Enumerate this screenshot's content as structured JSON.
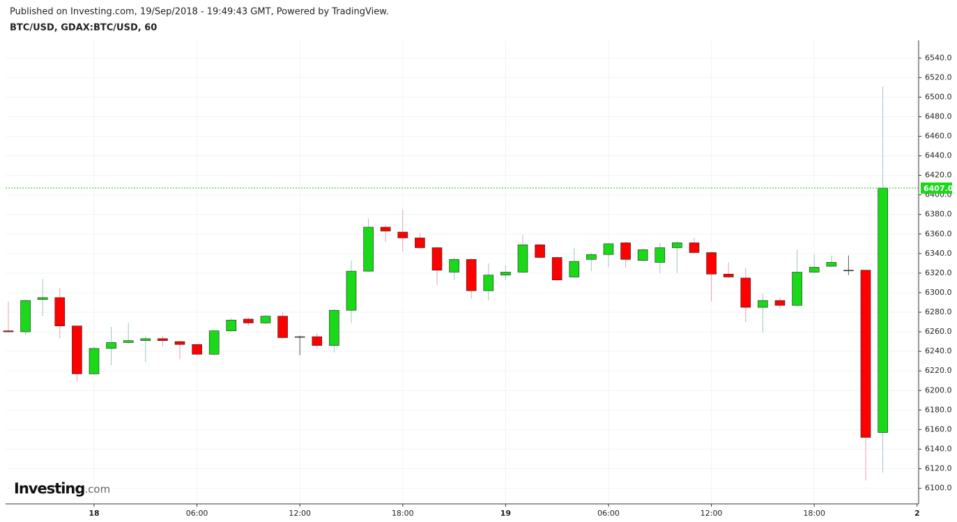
{
  "header": {
    "published": "Published on Investing.com, 19/Sep/2018 - 19:49:43 GMT, Powered by TradingView.",
    "symbol": "BTC/USD, GDAX:BTC/USD, 60"
  },
  "logo": {
    "name": "Investing",
    "suffix": ".com"
  },
  "chart_data": {
    "type": "candlestick",
    "categories": [
      null,
      null,
      null,
      null,
      null,
      "18",
      null,
      null,
      null,
      null,
      null,
      "06:00",
      null,
      null,
      null,
      null,
      null,
      "12:00",
      null,
      null,
      null,
      null,
      null,
      "18:00",
      null,
      null,
      null,
      null,
      null,
      "19",
      null,
      null,
      null,
      null,
      null,
      "06:00",
      null,
      null,
      null,
      null,
      null,
      "12:00",
      null,
      null,
      null,
      null,
      null,
      "18:00",
      null,
      null,
      null,
      null,
      null,
      "2"
    ],
    "open": [
      6261,
      6260,
      6293,
      6295,
      6266,
      6217,
      6243,
      6249,
      6251,
      6253,
      6250,
      6247,
      6237,
      6261,
      6273,
      6269,
      6276,
      6255,
      6255,
      6246,
      6282,
      6322,
      6367,
      6362,
      6356,
      6346,
      6321,
      6334,
      6302,
      6318,
      6321,
      6349,
      6336,
      6316,
      6334,
      6339,
      6351,
      6333,
      6331,
      6346,
      6351,
      6341,
      6319,
      6315,
      6285,
      6292,
      6287,
      6321,
      6327,
      6323,
      6323,
      6157,
      null,
      null
    ],
    "high": [
      6291,
      6293,
      6314,
      6305,
      6266,
      6245,
      6265,
      6269,
      6256,
      6256,
      6251,
      6248,
      6262,
      6274,
      6274,
      6277,
      6280,
      6256,
      6259,
      6283,
      6333,
      6376,
      6369,
      6385,
      6361,
      6347,
      6336,
      6335,
      6330,
      6328,
      6359,
      6350,
      6337,
      6346,
      6341,
      6351,
      6352,
      6345,
      6351,
      6353,
      6356,
      6342,
      6331,
      6325,
      6299,
      6295,
      6344,
      6339,
      6338,
      6338,
      6323,
      6511,
      null,
      null
    ],
    "low": [
      6259,
      6257,
      6276,
      6253,
      6209,
      6216,
      6226,
      6248,
      6229,
      6245,
      6232,
      6236,
      6236,
      6260,
      6266,
      6268,
      6253,
      6236,
      6243,
      6239,
      6269,
      6321,
      6352,
      6342,
      6345,
      6308,
      6313,
      6294,
      6292,
      6313,
      6320,
      6335,
      6312,
      6315,
      6322,
      6326,
      6326,
      6332,
      6320,
      6320,
      6340,
      6291,
      6315,
      6270,
      6259,
      6284,
      6286,
      6320,
      6326,
      6318,
      6108,
      6116,
      null,
      null
    ],
    "close": [
      6260,
      6292,
      6295,
      6266,
      6217,
      6243,
      6249,
      6251,
      6253,
      6251,
      6247,
      6237,
      6261,
      6272,
      6269,
      6276,
      6254,
      6255,
      6246,
      6282,
      6322,
      6367,
      6363,
      6356,
      6346,
      6323,
      6334,
      6302,
      6318,
      6321,
      6349,
      6336,
      6313,
      6332,
      6339,
      6350,
      6334,
      6344,
      6346,
      6351,
      6341,
      6319,
      6316,
      6285,
      6292,
      6287,
      6321,
      6326,
      6331,
      6323,
      6152,
      6407,
      null,
      null
    ],
    "up_color": "#19d919",
    "down_color": "#ff0000",
    "up_wick_color": "#9fc3c8",
    "down_wick_color": "#e8a0a8",
    "last_price": {
      "value": 6407,
      "label": "6407.0"
    },
    "ylim": [
      6084,
      6558
    ],
    "yticks": [
      {
        "value": 6100,
        "label": "6100.0"
      },
      {
        "value": 6120,
        "label": "6120.0"
      },
      {
        "value": 6140,
        "label": "6140.0"
      },
      {
        "value": 6160,
        "label": "6160.0"
      },
      {
        "value": 6180,
        "label": "6180.0"
      },
      {
        "value": 6200,
        "label": "6200.0"
      },
      {
        "value": 6220,
        "label": "6220.0"
      },
      {
        "value": 6240,
        "label": "6240.0"
      },
      {
        "value": 6260,
        "label": "6260.0"
      },
      {
        "value": 6280,
        "label": "6280.0"
      },
      {
        "value": 6300,
        "label": "6300.0"
      },
      {
        "value": 6320,
        "label": "6320.0"
      },
      {
        "value": 6340,
        "label": "6340.0"
      },
      {
        "value": 6360,
        "label": "6360.0"
      },
      {
        "value": 6380,
        "label": "6380.0"
      },
      {
        "value": 6400,
        "label": "6400.0"
      },
      {
        "value": 6420,
        "label": "6420.0"
      },
      {
        "value": 6440,
        "label": "6440.0"
      },
      {
        "value": 6460,
        "label": "6460.0"
      },
      {
        "value": 6480,
        "label": "6480.0"
      },
      {
        "value": 6500,
        "label": "6500.0"
      },
      {
        "value": 6520,
        "label": "6520.0"
      },
      {
        "value": 6540,
        "label": "6540.0"
      }
    ],
    "grid": true
  }
}
